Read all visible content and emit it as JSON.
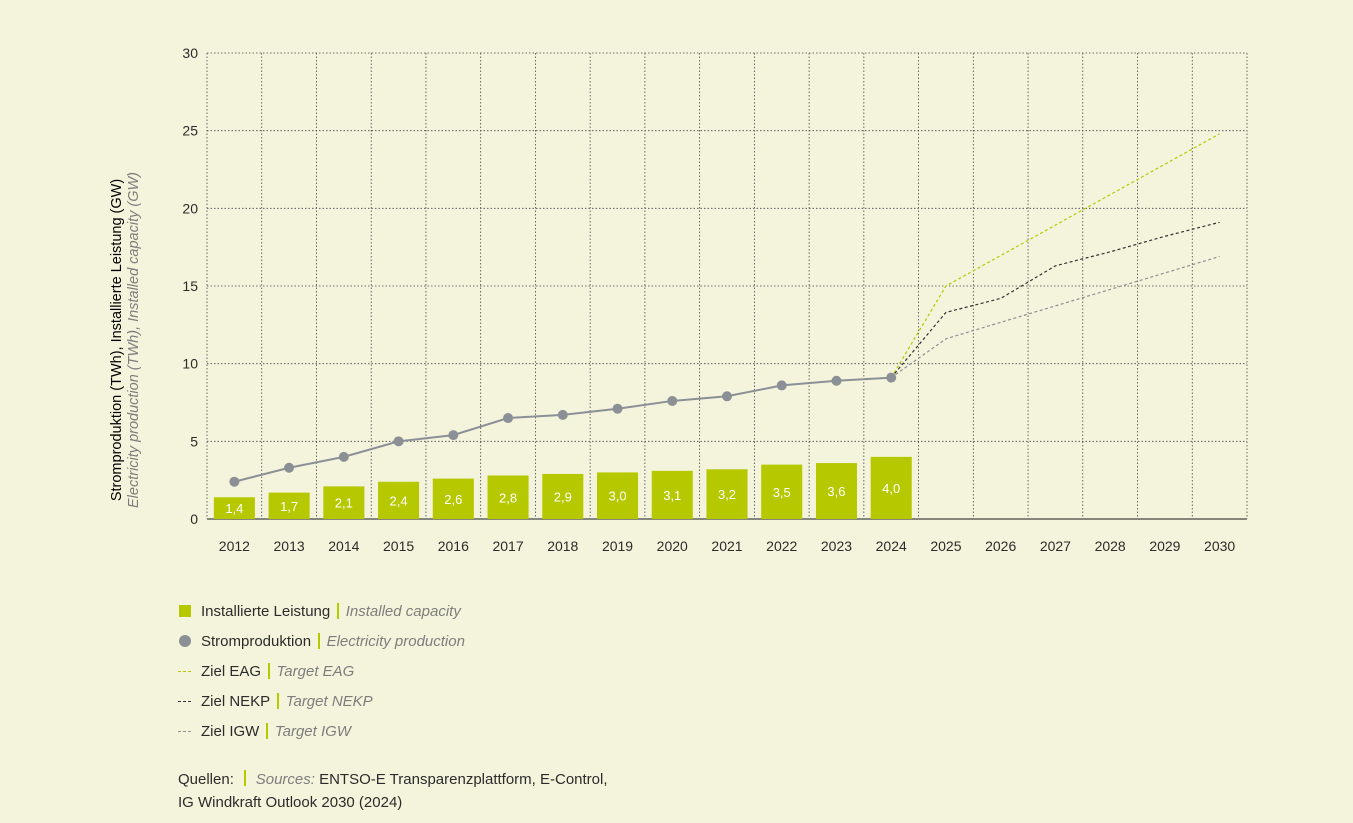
{
  "chart_data": {
    "type": "bar+line",
    "x": [
      2012,
      2013,
      2014,
      2015,
      2016,
      2017,
      2018,
      2019,
      2020,
      2021,
      2022,
      2023,
      2024,
      2025,
      2026,
      2027,
      2028,
      2029,
      2030
    ],
    "ylim": [
      0,
      30
    ],
    "yticks": [
      0,
      5,
      10,
      15,
      20,
      25,
      30
    ],
    "ylabel": "Stromproduktion (TWh), Installierte Leistung (GW)",
    "ylabel_en": "Electricity production (TWh), Installed capacity (GW)",
    "grid": true,
    "series": [
      {
        "name": "Installierte Leistung",
        "name_en": "Installed capacity",
        "type": "bar",
        "color": "#b5c800",
        "x": [
          2012,
          2013,
          2014,
          2015,
          2016,
          2017,
          2018,
          2019,
          2020,
          2021,
          2022,
          2023,
          2024
        ],
        "values": [
          1.4,
          1.7,
          2.1,
          2.4,
          2.6,
          2.8,
          2.9,
          3.0,
          3.1,
          3.2,
          3.5,
          3.6,
          4.0
        ],
        "labels": [
          "1,4",
          "1,7",
          "2,1",
          "2,4",
          "2,6",
          "2,8",
          "2,9",
          "3,0",
          "3,1",
          "3,2",
          "3,5",
          "3,6",
          "4,0"
        ]
      },
      {
        "name": "Stromproduktion",
        "name_en": "Electricity production",
        "type": "line-markers",
        "color": "#8b9096",
        "x": [
          2012,
          2013,
          2014,
          2015,
          2016,
          2017,
          2018,
          2019,
          2020,
          2021,
          2022,
          2023,
          2024
        ],
        "values": [
          2.4,
          3.3,
          4.0,
          5.0,
          5.4,
          6.5,
          6.7,
          7.1,
          7.6,
          7.9,
          8.6,
          8.9,
          9.1
        ]
      },
      {
        "name": "Ziel EAG",
        "name_en": "Target EAG",
        "type": "dashed-line",
        "color": "#b5c800",
        "x": [
          2024,
          2025,
          2030
        ],
        "values": [
          9.1,
          15.0,
          24.8
        ]
      },
      {
        "name": "Ziel NEKP",
        "name_en": "Target NEKP",
        "type": "dashed-line",
        "color": "#333333",
        "x": [
          2024,
          2025,
          2026,
          2027,
          2028,
          2029,
          2030
        ],
        "values": [
          9.1,
          13.3,
          14.2,
          16.3,
          17.2,
          18.2,
          19.1
        ]
      },
      {
        "name": "Ziel IGW",
        "name_en": "Target IGW",
        "type": "dashed-line",
        "color": "#8b9096",
        "x": [
          2024,
          2025,
          2030
        ],
        "values": [
          9.1,
          11.6,
          16.9
        ]
      }
    ]
  },
  "colors": {
    "background": "#f4f4dc",
    "accent": "#b5c800",
    "grey": "#8b9096",
    "dark": "#333333"
  },
  "sources": {
    "label": "Quellen:",
    "label_en": "Sources:",
    "text1": "ENTSO-E Transparenzplattform, E-Control,",
    "text2": "IG Windkraft Outlook 2030 (2024)"
  }
}
